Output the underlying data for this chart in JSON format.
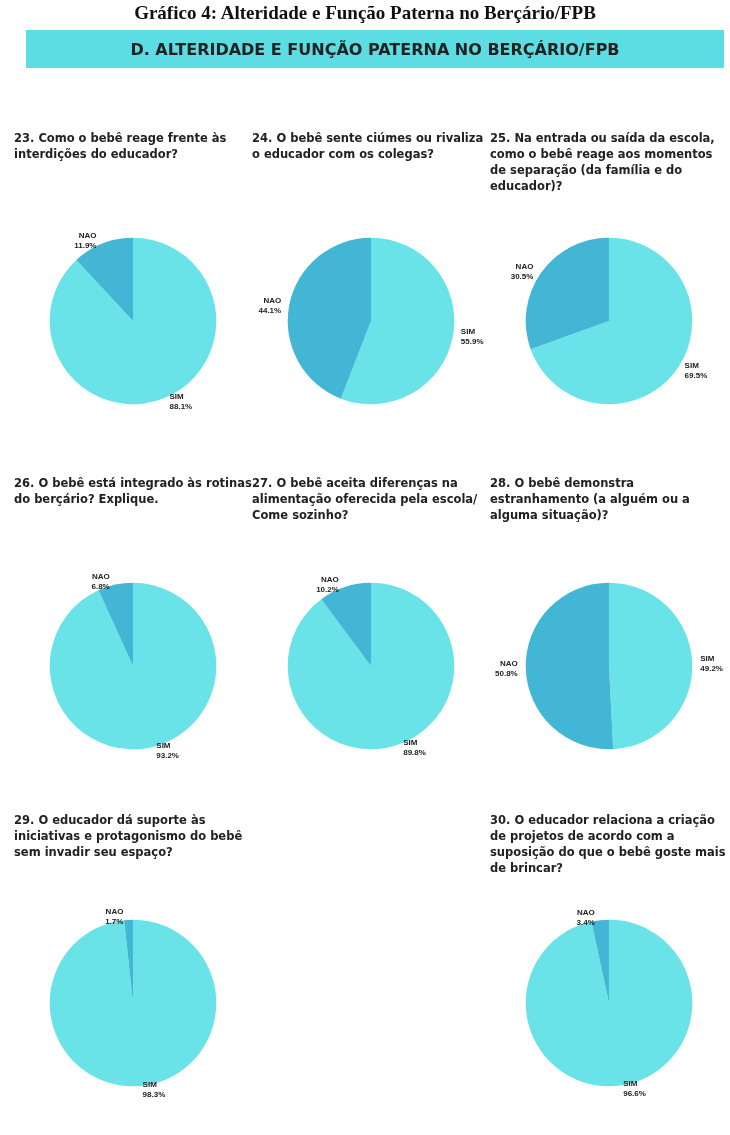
{
  "chart_data": [
    {
      "type": "other",
      "title": "Gráfico 4: Alteridade e Função Paterna no Berçário/FPB",
      "subtitle": "D.   ALTERIDADE E FUNÇÃO PATERNA NO BERÇÁRIO/FPB"
    },
    {
      "type": "pie",
      "title": "23. Como o bebê reage frente às interdições do educador?",
      "categories": [
        "SIM",
        "NAO"
      ],
      "values": [
        88.1,
        11.9
      ],
      "value_labels": [
        "88.1%",
        "11.9%"
      ],
      "colors": [
        "#6ae3e8",
        "#42b6d4"
      ]
    },
    {
      "type": "pie",
      "title": "24. O bebê sente ciúmes ou rivaliza o educador com os colegas?",
      "categories": [
        "SIM",
        "NAO"
      ],
      "values": [
        55.9,
        44.1
      ],
      "value_labels": [
        "55.9%",
        "44.1%"
      ],
      "colors": [
        "#6ae3e8",
        "#42b6d4"
      ]
    },
    {
      "type": "pie",
      "title": "25. Na entrada ou saída da escola, como o bebê reage aos momentos de separação (da família e do educador)?",
      "categories": [
        "SIM",
        "NAO"
      ],
      "values": [
        69.5,
        30.5
      ],
      "value_labels": [
        "69.5%",
        "30.5%"
      ],
      "colors": [
        "#6ae3e8",
        "#42b6d4"
      ]
    },
    {
      "type": "pie",
      "title": "26. O bebê está integrado às rotinas do berçário? Explique.",
      "categories": [
        "SIM",
        "NAO"
      ],
      "values": [
        93.2,
        6.8
      ],
      "value_labels": [
        "93.2%",
        "6.8%"
      ],
      "colors": [
        "#6ae3e8",
        "#42b6d4"
      ]
    },
    {
      "type": "pie",
      "title": "27. O bebê aceita diferenças na alimentação oferecida pela escola/ Come sozinho?",
      "categories": [
        "SIM",
        "NAO"
      ],
      "values": [
        89.8,
        10.2
      ],
      "value_labels": [
        "89.8%",
        "10.2%"
      ],
      "colors": [
        "#6ae3e8",
        "#42b6d4"
      ]
    },
    {
      "type": "pie",
      "title": "28. O bebê demonstra estranhamento (a alguém ou a alguma situação)?",
      "categories": [
        "SIM",
        "NAO"
      ],
      "values": [
        49.2,
        50.8
      ],
      "value_labels": [
        "49.2%",
        "50.8%"
      ],
      "colors": [
        "#6ae3e8",
        "#42b6d4"
      ]
    },
    {
      "type": "pie",
      "title": "29. O educador dá suporte às iniciativas e protagonismo do bebê sem invadir seu espaço?",
      "categories": [
        "SIM",
        "NAO"
      ],
      "values": [
        98.3,
        1.7
      ],
      "value_labels": [
        "98.3%",
        "1.7%"
      ],
      "colors": [
        "#6ae3e8",
        "#42b6d4"
      ]
    },
    {
      "type": "pie",
      "title": "30. O educador relaciona a criação de projetos de acordo com a suposição do que o bebê goste mais de brincar?",
      "categories": [
        "SIM",
        "NAO"
      ],
      "values": [
        96.6,
        3.4
      ],
      "value_labels": [
        "96.6%",
        "3.4%"
      ],
      "colors": [
        "#6ae3e8",
        "#42b6d4"
      ]
    }
  ]
}
